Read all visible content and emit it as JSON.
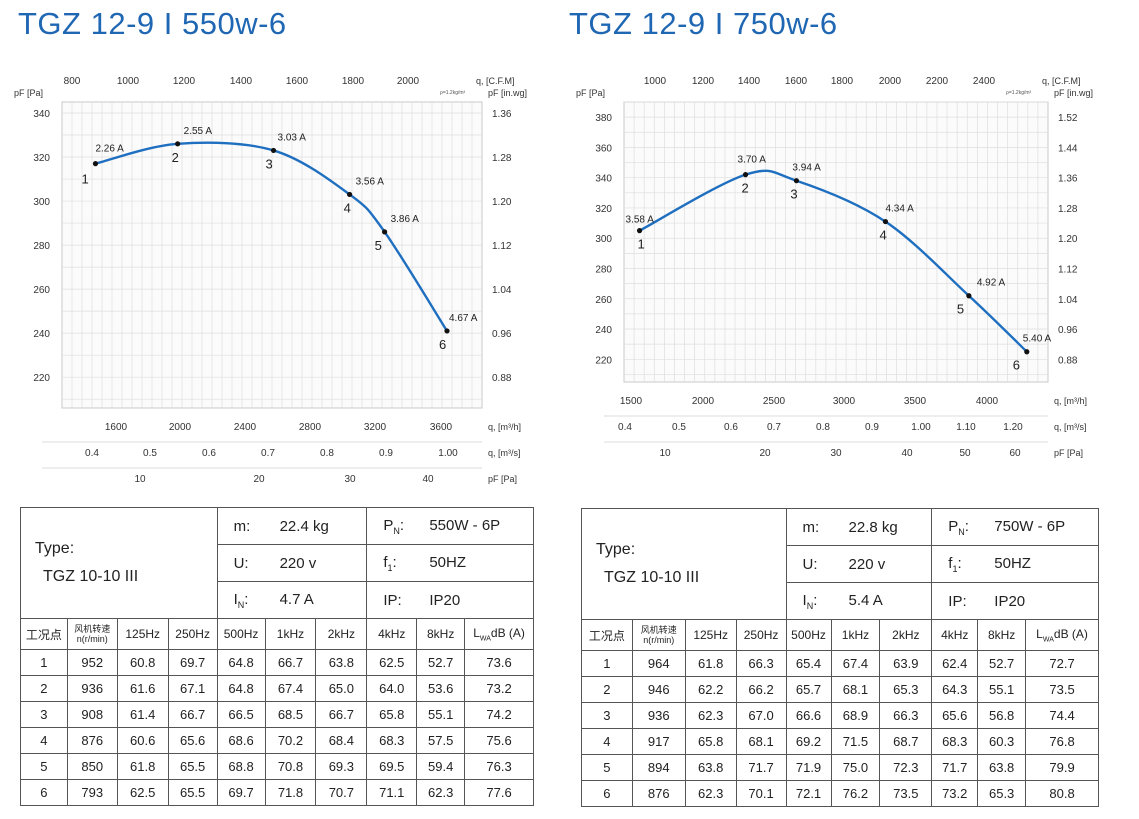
{
  "panels": [
    {
      "title": "TGZ 12-9 I 550w-6",
      "chart_data": {
        "type": "line",
        "title": "TGZ 12-9 I 550w-6",
        "ylabel": "pF [Pa]",
        "ylabel_right": "pF [in.wg]",
        "ylim": [
          206,
          345
        ],
        "y_ticks": [
          220,
          240,
          260,
          280,
          300,
          320,
          340
        ],
        "y_right_ticks": [
          "0.88",
          "0.96",
          "1.04",
          "1.12",
          "1.20",
          "1.28",
          "1.36"
        ],
        "density_note": "ρ=1.2kg/m³",
        "x_axes": [
          {
            "label": "q, [C.F.M]",
            "ticks": [
              "800",
              "1000",
              "1200",
              "1400",
              "1600",
              "1800",
              "2000"
            ]
          },
          {
            "label": "q, [m³/h]",
            "ticks": [
              "1600",
              "2000",
              "2400",
              "2800",
              "3200",
              "3600"
            ]
          },
          {
            "label": "q, [m³/s]",
            "ticks": [
              "0.4",
              "0.5",
              "0.6",
              "0.7",
              "0.8",
              "0.9",
              "1.00"
            ]
          },
          {
            "label": "pF [Pa]",
            "ticks": [
              "10",
              "20",
              "30",
              "40"
            ]
          }
        ],
        "points": [
          {
            "id": "1",
            "q": 1410,
            "p": 317,
            "current": "2.26 A"
          },
          {
            "id": "2",
            "q": 1950,
            "p": 326,
            "current": "2.55 A"
          },
          {
            "id": "3",
            "q": 2580,
            "p": 323,
            "current": "3.03 A"
          },
          {
            "id": "4",
            "q": 3080,
            "p": 303,
            "current": "3.56 A"
          },
          {
            "id": "5",
            "q": 3310,
            "p": 286,
            "current": "3.86 A"
          },
          {
            "id": "6",
            "q": 3720,
            "p": 241,
            "current": "4.67 A"
          }
        ]
      },
      "spec": {
        "type_label": "Type:",
        "type_value": "TGZ 10-10 III",
        "m_key": "m:",
        "m_val": "22.4  kg",
        "u_key": "U:",
        "u_val": "220  v",
        "in_key_main": "I",
        "in_key_sub": "N",
        "in_val": "4.7  A",
        "pn_key_main": "P",
        "pn_key_sub": "N",
        "pn_val": "550W - 6P",
        "f_key_main": "f",
        "f_key_sub": "1",
        "f_val": "50HZ",
        "ip_key": "IP:",
        "ip_val": "IP20",
        "columns": [
          "工况点",
          "风机转速",
          "n(r/min)",
          "125Hz",
          "250Hz",
          "500Hz",
          "1kHz",
          "2kHz",
          "4kHz",
          "8kHz",
          "L",
          "WA",
          "dB (A)"
        ],
        "rows": [
          [
            "1",
            "952",
            "60.8",
            "69.7",
            "64.8",
            "66.7",
            "63.8",
            "62.5",
            "52.7",
            "73.6"
          ],
          [
            "2",
            "936",
            "61.6",
            "67.1",
            "64.8",
            "67.4",
            "65.0",
            "64.0",
            "53.6",
            "73.2"
          ],
          [
            "3",
            "908",
            "61.4",
            "66.7",
            "66.5",
            "68.5",
            "66.7",
            "65.8",
            "55.1",
            "74.2"
          ],
          [
            "4",
            "876",
            "60.6",
            "65.6",
            "68.6",
            "70.2",
            "68.4",
            "68.3",
            "57.5",
            "75.6"
          ],
          [
            "5",
            "850",
            "61.8",
            "65.5",
            "68.8",
            "70.8",
            "69.3",
            "69.5",
            "59.4",
            "76.3"
          ],
          [
            "6",
            "793",
            "62.5",
            "65.5",
            "69.7",
            "71.8",
            "70.7",
            "71.1",
            "62.3",
            "77.6"
          ]
        ]
      }
    },
    {
      "title": "TGZ 12-9 I 750w-6",
      "chart_data": {
        "type": "line",
        "title": "TGZ 12-9 I 750w-6",
        "ylabel": "pF [Pa]",
        "ylabel_right": "pF [in.wg]",
        "ylim": [
          205,
          390
        ],
        "y_ticks": [
          220,
          240,
          260,
          280,
          300,
          320,
          340,
          360,
          380
        ],
        "y_right_ticks": [
          "0.88",
          "0.96",
          "1.04",
          "1.12",
          "1.20",
          "1.28",
          "1.36",
          "1.44",
          "1.52"
        ],
        "density_note": "ρ=1.2kg/m³",
        "x_axes": [
          {
            "label": "q, [C.F.M]",
            "ticks": [
              "1000",
              "1200",
              "1400",
              "1600",
              "1800",
              "2000",
              "2200",
              "2400"
            ]
          },
          {
            "label": "q, [m³/h]",
            "ticks": [
              "1500",
              "2000",
              "2500",
              "3000",
              "3500",
              "4000"
            ]
          },
          {
            "label": "q, [m³/s]",
            "ticks": [
              "0.4",
              "0.5",
              "0.6",
              "0.7",
              "0.8",
              "0.9",
              "1.00",
              "1.10",
              "1.20"
            ]
          },
          {
            "label": "pF [Pa]",
            "ticks": [
              "10",
              "20",
              "30",
              "40",
              "50",
              "60"
            ]
          }
        ],
        "points": [
          {
            "id": "1",
            "q": 1490,
            "p": 305,
            "current": "3.58 A"
          },
          {
            "id": "2",
            "q": 2240,
            "p": 342,
            "current": "3.70 A"
          },
          {
            "id": "3",
            "q": 2600,
            "p": 338,
            "current": "3.94 A"
          },
          {
            "id": "4",
            "q": 3230,
            "p": 311,
            "current": "4.34 A"
          },
          {
            "id": "5",
            "q": 3820,
            "p": 262,
            "current": "4.92 A"
          },
          {
            "id": "6",
            "q": 4230,
            "p": 225,
            "current": "5.40 A"
          }
        ]
      },
      "spec": {
        "type_label": "Type:",
        "type_value": "TGZ 10-10 III",
        "m_key": "m:",
        "m_val": "22.8  kg",
        "u_key": "U:",
        "u_val": "220  v",
        "in_key_main": "I",
        "in_key_sub": "N",
        "in_val": "5.4  A",
        "pn_key_main": "P",
        "pn_key_sub": "N",
        "pn_val": "750W - 6P",
        "f_key_main": "f",
        "f_key_sub": "1",
        "f_val": "50HZ",
        "ip_key": "IP:",
        "ip_val": "IP20",
        "columns": [
          "工况点",
          "风机转速",
          "n(r/min)",
          "125Hz",
          "250Hz",
          "500Hz",
          "1kHz",
          "2kHz",
          "4kHz",
          "8kHz",
          "L",
          "WA",
          "dB (A)"
        ],
        "rows": [
          [
            "1",
            "964",
            "61.8",
            "66.3",
            "65.4",
            "67.4",
            "63.9",
            "62.4",
            "52.7",
            "72.7"
          ],
          [
            "2",
            "946",
            "62.2",
            "66.2",
            "65.7",
            "68.1",
            "65.3",
            "64.3",
            "55.1",
            "73.5"
          ],
          [
            "3",
            "936",
            "62.3",
            "67.0",
            "66.6",
            "68.9",
            "66.3",
            "65.6",
            "56.8",
            "74.4"
          ],
          [
            "4",
            "917",
            "65.8",
            "68.1",
            "69.2",
            "71.5",
            "68.7",
            "68.3",
            "60.3",
            "76.8"
          ],
          [
            "5",
            "894",
            "63.8",
            "71.7",
            "71.9",
            "75.0",
            "72.3",
            "71.7",
            "63.8",
            "79.9"
          ],
          [
            "6",
            "876",
            "62.3",
            "70.1",
            "72.1",
            "76.2",
            "73.5",
            "73.2",
            "65.3",
            "80.8"
          ]
        ]
      },
      "colors": {
        "curve": "#1f6fc0",
        "title": "#1f66b3",
        "grid": "#d0d0d0"
      }
    }
  ]
}
